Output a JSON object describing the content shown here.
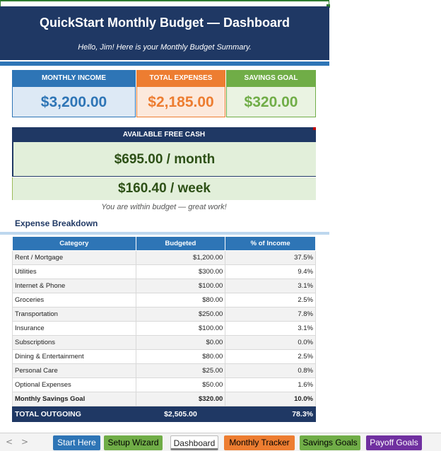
{
  "colors": {
    "navy": "#1f3864",
    "blue": "#2e75b6",
    "orange": "#ed7d31",
    "green": "#70ad47",
    "free_cash_bg": "#e2efda"
  },
  "banner": {
    "title": "QuickStart Monthly Budget  —  Dashboard",
    "subtitle": "Hello, Jim!  Here is your Monthly Budget Summary."
  },
  "kpis": [
    {
      "label": "MONTHLY INCOME",
      "value": "$3,200.00",
      "color": "#2e75b6"
    },
    {
      "label": "TOTAL EXPENSES",
      "value": "$2,185.00",
      "color": "#ed7d31"
    },
    {
      "label": "SAVINGS GOAL",
      "value": "$320.00",
      "color": "#70ad47"
    }
  ],
  "free_cash": {
    "label": "AVAILABLE FREE CASH",
    "monthly": "$695.00 / month",
    "weekly": "$160.40 / week",
    "note": "You are within budget — great work!"
  },
  "breakdown": {
    "title": "Expense Breakdown",
    "columns": [
      "Category",
      "Budgeted",
      "% of Income"
    ],
    "rows": [
      [
        "Rent / Mortgage",
        "$1,200.00",
        "37.5%"
      ],
      [
        "Utilities",
        "$300.00",
        "9.4%"
      ],
      [
        "Internet & Phone",
        "$100.00",
        "3.1%"
      ],
      [
        "Groceries",
        "$80.00",
        "2.5%"
      ],
      [
        "Transportation",
        "$250.00",
        "7.8%"
      ],
      [
        "Insurance",
        "$100.00",
        "3.1%"
      ],
      [
        "Subscriptions",
        "$0.00",
        "0.0%"
      ],
      [
        "Dining & Entertainment",
        "$80.00",
        "2.5%"
      ],
      [
        "Personal Care",
        "$25.00",
        "0.8%"
      ],
      [
        "Optional Expenses",
        "$50.00",
        "1.6%"
      ],
      [
        "Monthly Savings Goal",
        "$320.00",
        "10.0%"
      ]
    ],
    "total": [
      "TOTAL OUTGOING",
      "$2,505.00",
      "78.3%"
    ]
  },
  "tabs": {
    "prev_icon": "chevron-left-icon",
    "next_icon": "chevron-right-icon",
    "prev_glyph": "<",
    "next_glyph": ">",
    "items": [
      {
        "label": "Start Here",
        "bg": "#2e75b6",
        "fg": "#ffffff"
      },
      {
        "label": "Setup Wizard",
        "bg": "#70ad47",
        "fg": "#000000"
      },
      {
        "label": "Dashboard",
        "bg": "#ffffff",
        "fg": "#222222",
        "active": true
      },
      {
        "label": "Monthly Tracker",
        "bg": "#ed7d31",
        "fg": "#000000"
      },
      {
        "label": "Savings Goals",
        "bg": "#70ad47",
        "fg": "#000000"
      },
      {
        "label": "Payoff Goals",
        "bg": "#7030a0",
        "fg": "#ffffff"
      }
    ]
  }
}
